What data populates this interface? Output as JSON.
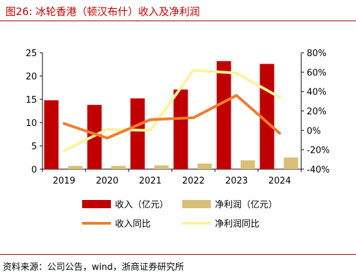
{
  "figure": {
    "title": "图26:  冰轮香港（顿汉布什）收入及净利润",
    "source": "资料来源：公司公告，wind，浙商证券研究所"
  },
  "colors": {
    "revenue_bar": "#c00000",
    "profit_bar": "#d9bf77",
    "revenue_yoy_line": "#ed7d31",
    "profit_yoy_line": "#fff2a0",
    "rule": "#a00000"
  },
  "chart_data": {
    "type": "bar",
    "categories": [
      "2019",
      "2020",
      "2021",
      "2022",
      "2023",
      "2024"
    ],
    "series": [
      {
        "name": "收入（亿元）",
        "type": "bar",
        "axis": "left",
        "values": [
          14.8,
          13.8,
          15.2,
          17.1,
          23.2,
          22.6
        ]
      },
      {
        "name": "净利润（亿元）",
        "type": "bar",
        "axis": "left",
        "values": [
          0.7,
          0.7,
          0.8,
          1.2,
          1.9,
          2.5
        ]
      },
      {
        "name": "收入同比",
        "type": "line",
        "axis": "right",
        "values": [
          7,
          -8,
          11,
          13,
          36,
          -3
        ]
      },
      {
        "name": "净利润同比",
        "type": "line",
        "axis": "right",
        "values": [
          -21,
          1,
          0,
          62,
          59,
          34
        ]
      }
    ],
    "y_left": {
      "ylim": [
        0,
        25
      ],
      "ticks": [
        "0",
        "5",
        "10",
        "15",
        "20",
        "25"
      ]
    },
    "y_right": {
      "ylim": [
        -40,
        80
      ],
      "ticks": [
        "-40%",
        "-20%",
        "0%",
        "20%",
        "40%",
        "60%",
        "80%"
      ]
    },
    "legend_placement": "bottom",
    "grid": false
  }
}
